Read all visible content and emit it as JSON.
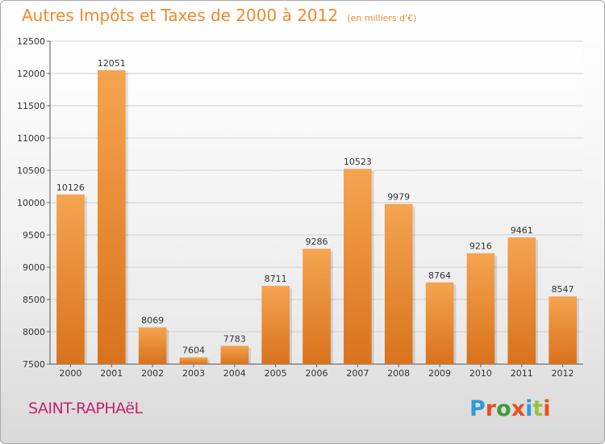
{
  "chart_data": {
    "type": "bar",
    "title": "Autres Impôts et Taxes de 2000 à 2012",
    "subtitle": "(en milliers d'€)",
    "categories": [
      "2000",
      "2001",
      "2002",
      "2003",
      "2004",
      "2005",
      "2006",
      "2007",
      "2008",
      "2009",
      "2010",
      "2011",
      "2012"
    ],
    "values": [
      10126,
      12051,
      8069,
      7604,
      7783,
      8711,
      9286,
      10523,
      9979,
      8764,
      9216,
      9461,
      8547
    ],
    "ylim": [
      7500,
      12500
    ],
    "yticks": [
      7500,
      8000,
      8500,
      9000,
      9500,
      10000,
      10500,
      11000,
      11500,
      12000,
      12500
    ],
    "grid": true,
    "bar_color": "#f0953a"
  },
  "footer": {
    "commune": "SAINT-RAPHAëL",
    "brand": "Proxiti",
    "brand_colors": [
      "#2e9ad6",
      "#e8501f",
      "#3f9b3a",
      "#e8501f",
      "#2e9ad6",
      "#9bc23c",
      "#e8501f"
    ]
  }
}
